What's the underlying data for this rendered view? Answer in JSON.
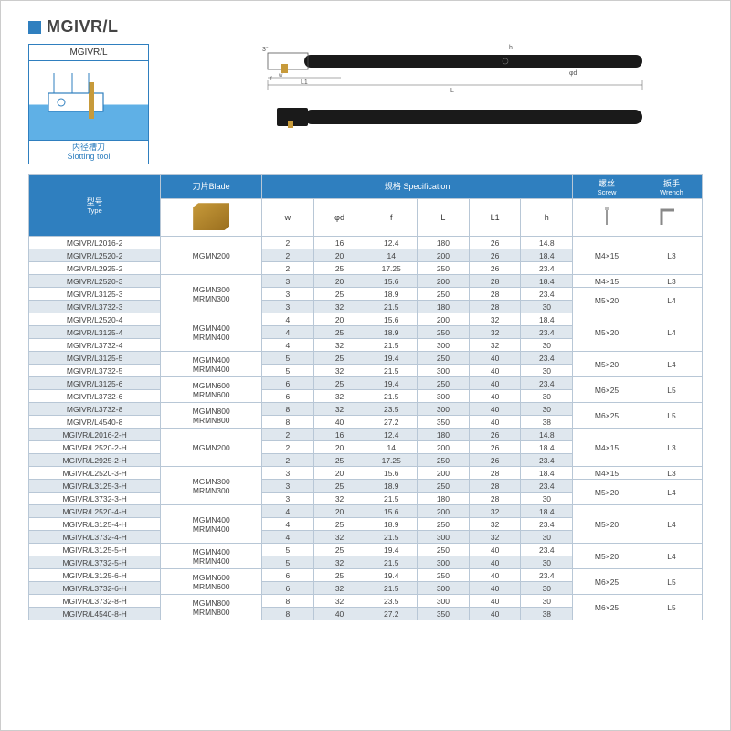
{
  "title": "MGIVR/L",
  "card": {
    "head": "MGIVR/L",
    "foot_cn": "内径槽刀",
    "foot_en": "Slotting tool"
  },
  "headers": {
    "type_cn": "型号",
    "type_en": "Type",
    "blade_cn": "刀片",
    "blade_en": "Blade",
    "spec_cn": "规格",
    "spec_en": "Specification",
    "screw_cn": "螺丝",
    "screw_en": "Screw",
    "wrench_cn": "扳手",
    "wrench_en": "Wrench",
    "cols": [
      "w",
      "φd",
      "f",
      "L",
      "L1",
      "h"
    ]
  },
  "colors": {
    "brand": "#2f7fbf",
    "alt_row": "#dfe7ee",
    "border": "#b8c7d6",
    "text": "#444444",
    "page_bg": "#ffffff",
    "card_water": "#5fb0e6",
    "insert_gold1": "#c79a3a",
    "insert_gold2": "#9a6f1f",
    "bar_black": "#1a1a1a"
  },
  "groups": [
    {
      "blade": "MGMN200",
      "screw": "M4×15",
      "wrench": "L3",
      "wrench_span_blank": false,
      "rows": [
        {
          "m": "MGIVR/L2016-2",
          "s": [
            2,
            16,
            "12.4",
            180,
            26,
            "14.8"
          ],
          "alt": false
        },
        {
          "m": "MGIVR/L2520-2",
          "s": [
            2,
            20,
            "14",
            200,
            26,
            "18.4"
          ],
          "alt": true
        },
        {
          "m": "MGIVR/L2925-2",
          "s": [
            2,
            25,
            "17.25",
            250,
            26,
            "23.4"
          ],
          "alt": false
        }
      ]
    },
    {
      "blade": "MGMN300\nMRMN300",
      "rows_screw": [
        {
          "screw": "M4×15",
          "wrench": "L3",
          "span": 1
        },
        {
          "screw": "M5×20",
          "wrench": "L4",
          "span": 2
        }
      ],
      "rows": [
        {
          "m": "MGIVR/L2520-3",
          "s": [
            3,
            20,
            "15.6",
            200,
            28,
            "18.4"
          ],
          "alt": true
        },
        {
          "m": "MGIVR/L3125-3",
          "s": [
            3,
            25,
            "18.9",
            250,
            28,
            "23.4"
          ],
          "alt": false
        },
        {
          "m": "MGIVR/L3732-3",
          "s": [
            3,
            32,
            "21.5",
            180,
            28,
            "30"
          ],
          "alt": true
        }
      ]
    },
    {
      "blade": "MGMN400\nMRMN400",
      "screw": "M5×20",
      "wrench": "L4",
      "rows": [
        {
          "m": "MGIVR/L2520-4",
          "s": [
            4,
            20,
            "15.6",
            200,
            32,
            "18.4"
          ],
          "alt": false
        },
        {
          "m": "MGIVR/L3125-4",
          "s": [
            4,
            25,
            "18.9",
            250,
            32,
            "23.4"
          ],
          "alt": true
        },
        {
          "m": "MGIVR/L3732-4",
          "s": [
            4,
            32,
            "21.5",
            300,
            32,
            "30"
          ],
          "alt": false
        }
      ]
    },
    {
      "blade": "MGMN400\nMRMN400",
      "screw": "M5×20",
      "wrench": "L4",
      "rows": [
        {
          "m": "MGIVR/L3125-5",
          "s": [
            5,
            25,
            "19.4",
            250,
            40,
            "23.4"
          ],
          "alt": true
        },
        {
          "m": "MGIVR/L3732-5",
          "s": [
            5,
            32,
            "21.5",
            300,
            40,
            "30"
          ],
          "alt": false
        }
      ]
    },
    {
      "blade": "MGMN600\nMRMN600",
      "screw": "M6×25",
      "wrench": "L5",
      "rows": [
        {
          "m": "MGIVR/L3125-6",
          "s": [
            6,
            25,
            "19.4",
            250,
            40,
            "23.4"
          ],
          "alt": true
        },
        {
          "m": "MGIVR/L3732-6",
          "s": [
            6,
            32,
            "21.5",
            300,
            40,
            "30"
          ],
          "alt": false
        }
      ]
    },
    {
      "blade": "MGMN800\nMRMN800",
      "screw": "M6×25",
      "wrench": "L5",
      "rows": [
        {
          "m": "MGIVR/L3732-8",
          "s": [
            8,
            32,
            "23.5",
            300,
            40,
            "30"
          ],
          "alt": true
        },
        {
          "m": "MGIVR/L4540-8",
          "s": [
            8,
            40,
            "27.2",
            350,
            40,
            "38"
          ],
          "alt": false
        }
      ]
    },
    {
      "blade": "MGMN200",
      "screw": "M4×15",
      "wrench": "L3",
      "rows": [
        {
          "m": "MGIVR/L2016-2-H",
          "s": [
            2,
            16,
            "12.4",
            180,
            26,
            "14.8"
          ],
          "alt": true
        },
        {
          "m": "MGIVR/L2520-2-H",
          "s": [
            2,
            20,
            "14",
            200,
            26,
            "18.4"
          ],
          "alt": false
        },
        {
          "m": "MGIVR/L2925-2-H",
          "s": [
            2,
            25,
            "17.25",
            250,
            26,
            "23.4"
          ],
          "alt": true
        }
      ]
    },
    {
      "blade": "MGMN300\nMRMN300",
      "rows_screw": [
        {
          "screw": "M4×15",
          "wrench": "L3",
          "span": 1
        },
        {
          "screw": "M5×20",
          "wrench": "L4",
          "span": 2
        }
      ],
      "rows": [
        {
          "m": "MGIVR/L2520-3-H",
          "s": [
            3,
            20,
            "15.6",
            200,
            28,
            "18.4"
          ],
          "alt": false
        },
        {
          "m": "MGIVR/L3125-3-H",
          "s": [
            3,
            25,
            "18.9",
            250,
            28,
            "23.4"
          ],
          "alt": true
        },
        {
          "m": "MGIVR/L3732-3-H",
          "s": [
            3,
            32,
            "21.5",
            180,
            28,
            "30"
          ],
          "alt": false
        }
      ]
    },
    {
      "blade": "MGMN400\nMRMN400",
      "screw": "M5×20",
      "wrench": "L4",
      "rows": [
        {
          "m": "MGIVR/L2520-4-H",
          "s": [
            4,
            20,
            "15.6",
            200,
            32,
            "18.4"
          ],
          "alt": true
        },
        {
          "m": "MGIVR/L3125-4-H",
          "s": [
            4,
            25,
            "18.9",
            250,
            32,
            "23.4"
          ],
          "alt": false
        },
        {
          "m": "MGIVR/L3732-4-H",
          "s": [
            4,
            32,
            "21.5",
            300,
            32,
            "30"
          ],
          "alt": true
        }
      ]
    },
    {
      "blade": "MGMN400\nMRMN400",
      "screw": "M5×20",
      "wrench": "L4",
      "rows": [
        {
          "m": "MGIVR/L3125-5-H",
          "s": [
            5,
            25,
            "19.4",
            250,
            40,
            "23.4"
          ],
          "alt": false
        },
        {
          "m": "MGIVR/L3732-5-H",
          "s": [
            5,
            32,
            "21.5",
            300,
            40,
            "30"
          ],
          "alt": true
        }
      ]
    },
    {
      "blade": "MGMN600\nMRMN600",
      "screw": "M6×25",
      "wrench": "L5",
      "rows": [
        {
          "m": "MGIVR/L3125-6-H",
          "s": [
            6,
            25,
            "19.4",
            250,
            40,
            "23.4"
          ],
          "alt": false
        },
        {
          "m": "MGIVR/L3732-6-H",
          "s": [
            6,
            32,
            "21.5",
            300,
            40,
            "30"
          ],
          "alt": true
        }
      ]
    },
    {
      "blade": "MGMN800\nMRMN800",
      "screw": "M6×25",
      "wrench": "L5",
      "rows": [
        {
          "m": "MGIVR/L3732-8-H",
          "s": [
            8,
            32,
            "23.5",
            300,
            40,
            "30"
          ],
          "alt": false
        },
        {
          "m": "MGIVR/L4540-8-H",
          "s": [
            8,
            40,
            "27.2",
            350,
            40,
            "38"
          ],
          "alt": true
        }
      ]
    }
  ]
}
